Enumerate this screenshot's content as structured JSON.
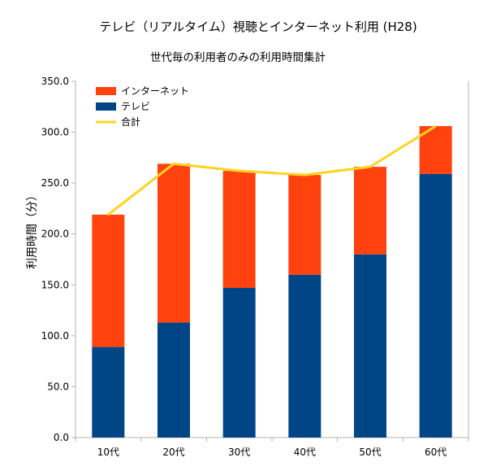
{
  "chart_data": {
    "type": "bar",
    "title": "テレビ（リアルタイム）視聴とインターネット利用 (H28)",
    "subtitle": "世代毎の利用者のみの利用時間集計",
    "ylabel": "利用時間（分）",
    "xlabel": "",
    "categories": [
      "10代",
      "20代",
      "30代",
      "40代",
      "50代",
      "60代"
    ],
    "ylim": [
      0,
      350
    ],
    "ytick_labels": [
      "0.0",
      "50.0",
      "100.0",
      "150.0",
      "200.0",
      "250.0",
      "300.0",
      "350.0"
    ],
    "grid": false,
    "legend_position": "top-left",
    "series": [
      {
        "name": "テレビ",
        "kind": "bar-stacked",
        "color": "#004586",
        "values": [
          89,
          113,
          147,
          160,
          180,
          259
        ]
      },
      {
        "name": "インターネット",
        "kind": "bar-stacked",
        "color": "#ff420e",
        "values": [
          130,
          156,
          115,
          98,
          86,
          47
        ]
      },
      {
        "name": "合計",
        "kind": "line",
        "color": "#ffd320",
        "values": [
          219,
          269,
          262,
          258,
          266,
          306
        ]
      }
    ],
    "legend": [
      "インターネット",
      "テレビ",
      "合計"
    ]
  }
}
